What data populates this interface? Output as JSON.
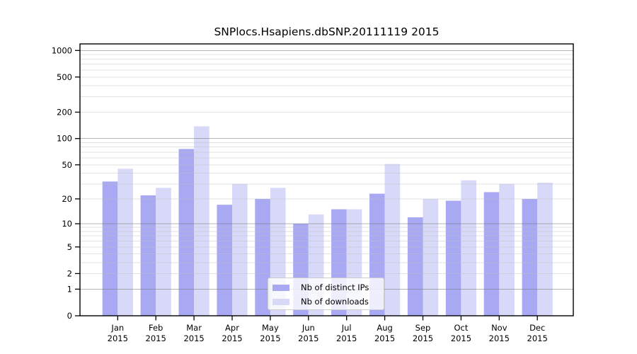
{
  "chart_data": {
    "type": "bar",
    "title": "SNPlocs.Hsapiens.dbSNP.20111119 2015",
    "categories": [
      "Jan 2015",
      "Feb 2015",
      "Mar 2015",
      "Apr 2015",
      "May 2015",
      "Jun 2015",
      "Jul 2015",
      "Aug 2015",
      "Sep 2015",
      "Oct 2015",
      "Nov 2015",
      "Dec 2015"
    ],
    "series": [
      {
        "name": "Nb of distinct IPs",
        "color": "#a8a8f3",
        "values": [
          32,
          22,
          76,
          17,
          20,
          10,
          15,
          23,
          12,
          19,
          24,
          20
        ]
      },
      {
        "name": "Nb of downloads",
        "color": "#d8d8f8",
        "values": [
          45,
          27,
          138,
          30,
          27,
          13,
          15,
          51,
          20,
          33,
          30,
          31
        ]
      }
    ],
    "xlabel": "",
    "ylabel": "",
    "y_scale": "log1p",
    "y_ticks": [
      1000,
      500,
      200,
      100,
      50,
      20,
      10,
      5,
      2,
      1,
      0
    ],
    "major_gridlines": [
      1,
      10,
      100,
      1000
    ],
    "grid": true,
    "legend_position": "bottom-center",
    "colors": {
      "axis": "#000000",
      "major_grid": "#b5b5b5",
      "minor_grid": "#e4e4e4",
      "background": "#ffffff"
    }
  }
}
